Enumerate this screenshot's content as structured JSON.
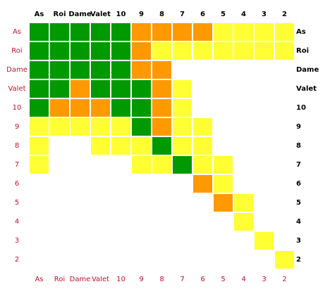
{
  "title": "",
  "ranks": [
    "As",
    "Roi",
    "Dame",
    "Valet",
    "10",
    "9",
    "8",
    "7",
    "6",
    "5",
    "4",
    "3",
    "2"
  ],
  "colors": {
    "G": "#009900",
    "O": "#ff9900",
    "Y": "#ffff33",
    "W": "#ffffff",
    "top_label": "#000000",
    "left_label": "#c8102e",
    "right_label": "#000000",
    "bottom_label": "#c8102e"
  },
  "legend": {
    "G": "green",
    "O": "orange",
    "Y": "yellow",
    "W": "empty"
  },
  "grid": [
    "GGGGGOOOOYYYY",
    "GGGGGOYYYYYYY",
    "GGGGGOOWWWWWW",
    "GGOGGGOYWWWWW",
    "GOOOGGOYWWWWW",
    "YYYYYGOYYWWWW",
    "YWWYYYGYYWWWW",
    "YWWWWYYGYYWWW",
    "WWWWWWWWOYWWW",
    "WWWWWWWWWOYWW",
    "WWWWWWWWWWYWW",
    "WWWWWWWWWWWYW",
    "WWWWWWWWWWWWY"
  ]
}
